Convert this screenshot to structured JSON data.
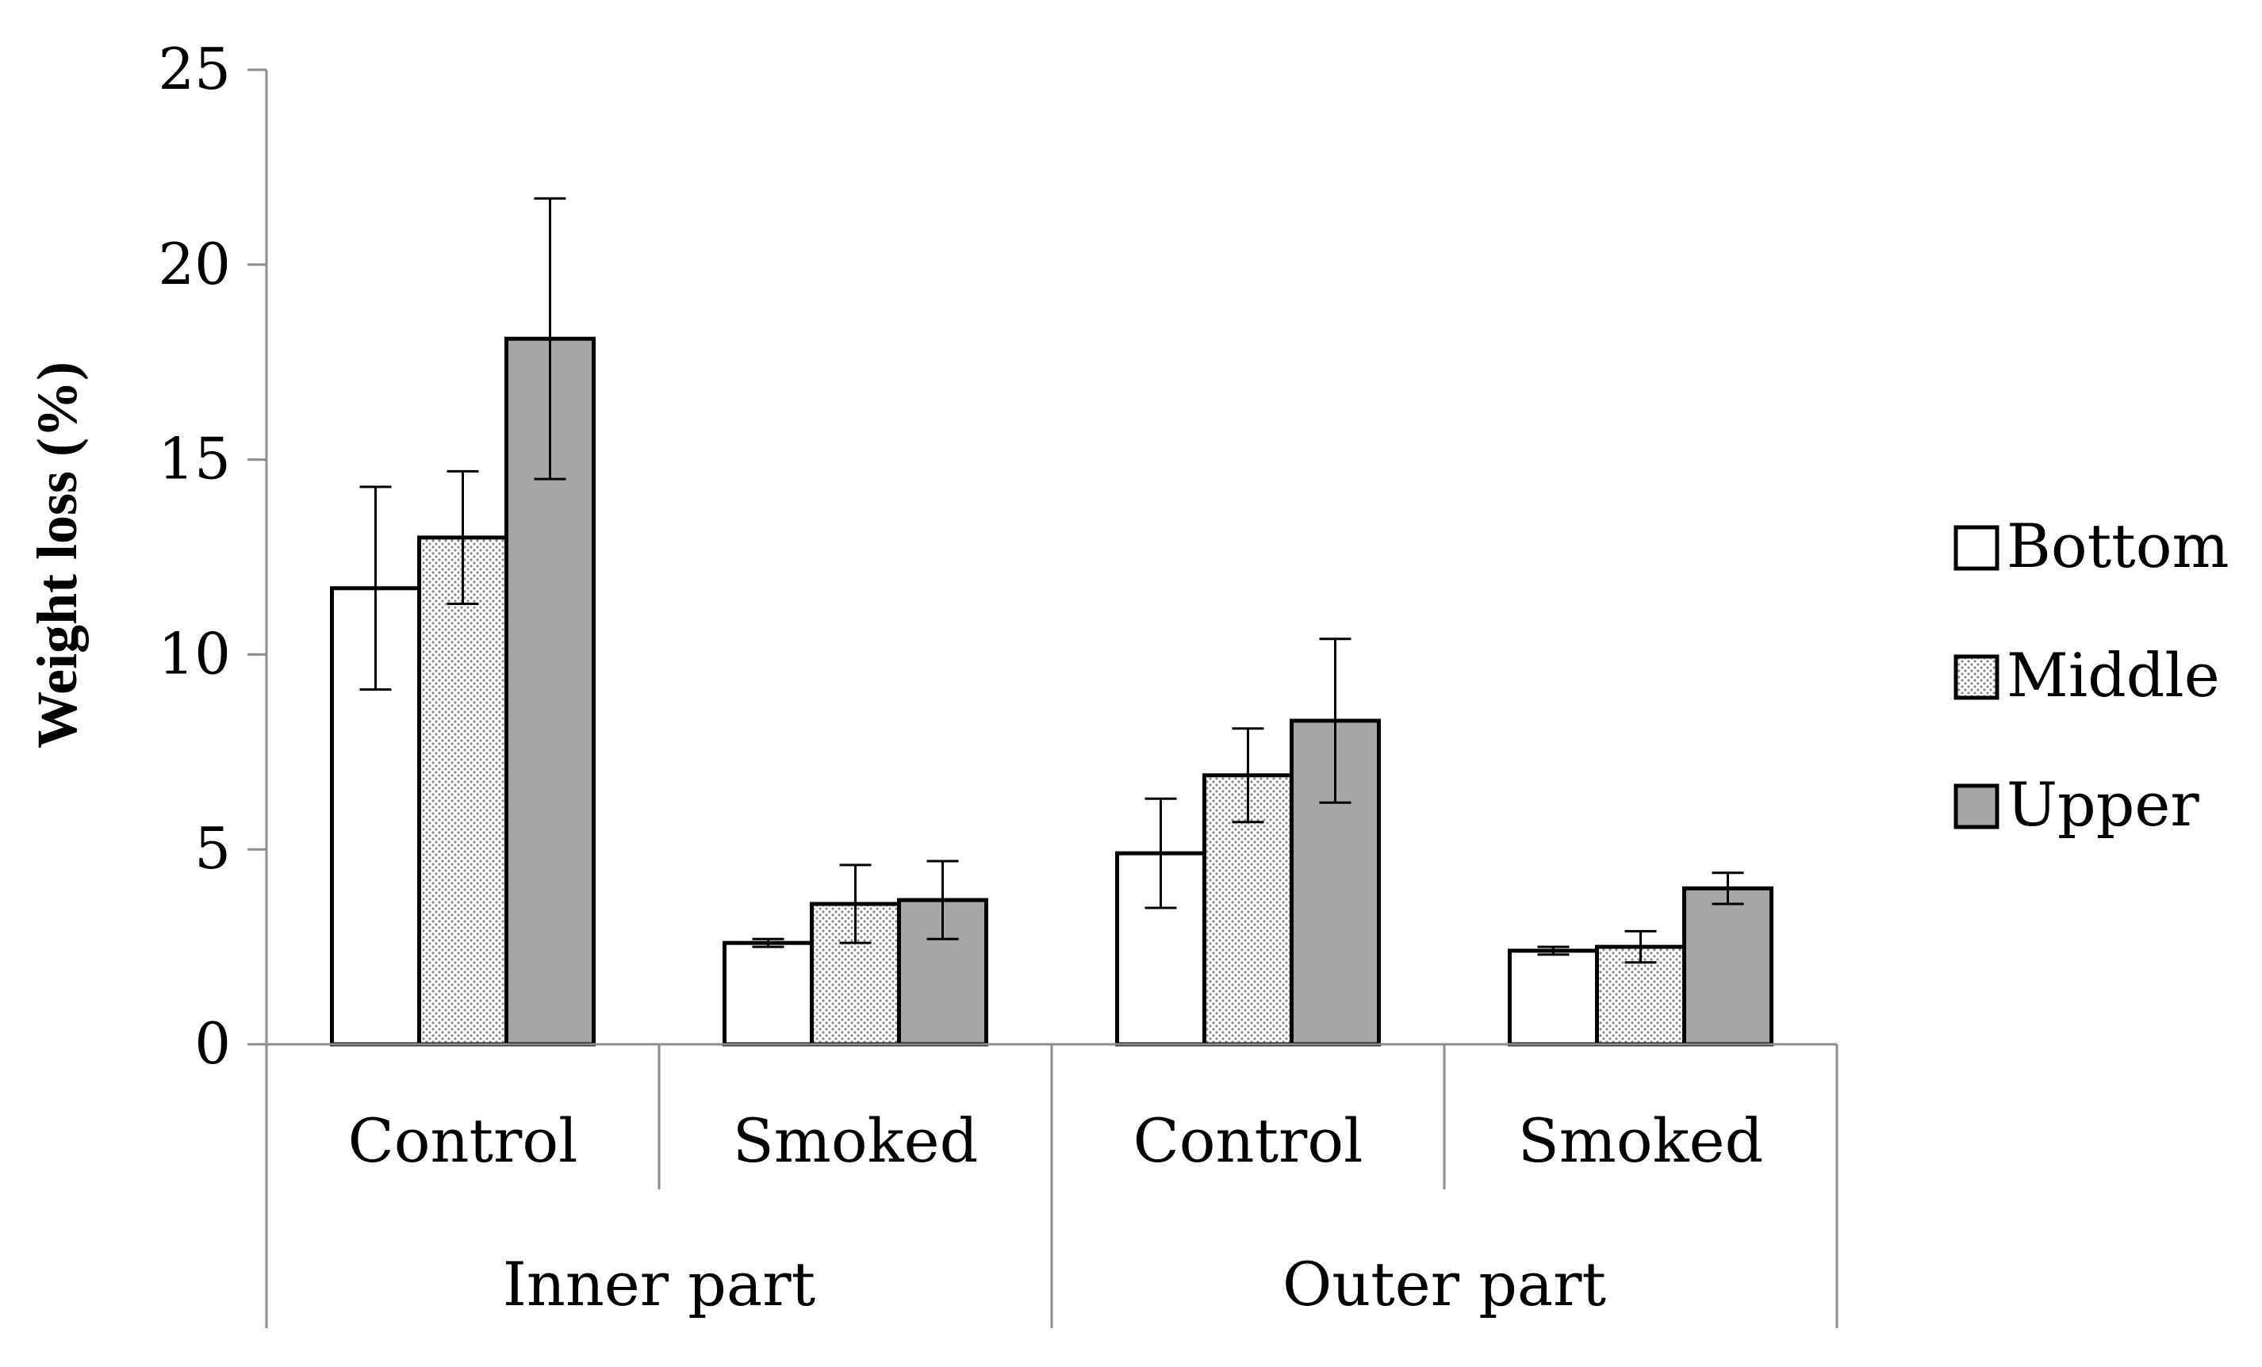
{
  "chart_data": {
    "type": "bar",
    "title": "",
    "xlabel": "",
    "ylabel": "Weight loss (%)",
    "ylim": [
      0,
      25
    ],
    "yticks": [
      0,
      5,
      10,
      15,
      20,
      25
    ],
    "grid": false,
    "legend_position": "right",
    "categories": [
      "Control",
      "Smoked",
      "Control",
      "Smoked"
    ],
    "groups": [
      {
        "label": "Inner part",
        "categories": [
          "Control",
          "Smoked"
        ]
      },
      {
        "label": "Outer part",
        "categories": [
          "Control",
          "Smoked"
        ]
      }
    ],
    "series": [
      {
        "name": "Bottom",
        "pattern": "solid",
        "color": "#ffffff",
        "values": [
          11.7,
          2.6,
          4.9,
          2.4
        ],
        "errors": [
          2.6,
          0.1,
          1.4,
          0.1
        ]
      },
      {
        "name": "Middle",
        "pattern": "dotted",
        "color": "#e8e8e8",
        "values": [
          13.0,
          3.6,
          6.9,
          2.5
        ],
        "errors": [
          1.7,
          1.0,
          1.2,
          0.4
        ]
      },
      {
        "name": "Upper",
        "pattern": "solid",
        "color": "#a6a6a6",
        "values": [
          18.1,
          3.7,
          8.3,
          4.0
        ],
        "errors": [
          3.6,
          1.0,
          2.1,
          0.4
        ]
      }
    ]
  }
}
